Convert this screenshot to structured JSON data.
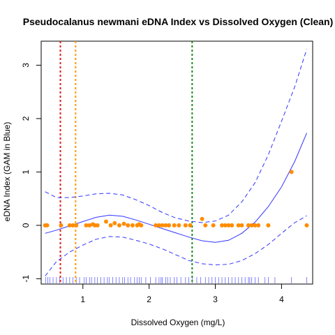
{
  "chart_data": {
    "type": "scatter",
    "title": "Pseudocalanus newmani eDNA Index vs Dissolved Oxygen (Clean)",
    "xlabel": "Dissolved Oxygen (mg/L)",
    "ylabel": "eDNA Index (GAM in Blue)",
    "xlim": [
      0.37,
      4.47
    ],
    "ylim": [
      -1.1,
      3.45
    ],
    "x_ticks": [
      1,
      2,
      3,
      4
    ],
    "y_ticks": [
      -1,
      0,
      1,
      2,
      3
    ],
    "grid": false,
    "colors": {
      "points": "#ff8c00",
      "gam": "#3333ff",
      "vline_red": "#e41a1c",
      "vline_orange": "#ff9900",
      "vline_green": "#1a8a1a",
      "rug": "#6666ff",
      "axis": "#000000"
    },
    "series": [
      {
        "kind": "points",
        "x": [
          0.43,
          0.46,
          0.67,
          0.8,
          0.85,
          0.9,
          1.05,
          1.1,
          1.15,
          1.18,
          1.22,
          1.35,
          1.42,
          1.48,
          1.55,
          1.62,
          1.68,
          1.75,
          1.82,
          1.85,
          1.88,
          2.1,
          2.15,
          2.2,
          2.25,
          2.3,
          2.38,
          2.45,
          2.55,
          2.62,
          2.8,
          2.85,
          2.97,
          3.1,
          3.15,
          3.2,
          3.25,
          3.35,
          3.4,
          3.5,
          3.55,
          3.6,
          3.65,
          3.8,
          4.15,
          4.38
        ],
        "y": [
          0.0,
          0.0,
          0.0,
          0.0,
          0.0,
          0.0,
          0.0,
          0.0,
          0.02,
          0.0,
          0.0,
          0.07,
          0.0,
          0.04,
          0.0,
          0.03,
          0.0,
          0.0,
          0.0,
          0.02,
          0.0,
          0.0,
          0.0,
          0.0,
          0.0,
          0.0,
          0.0,
          0.0,
          0.0,
          0.0,
          0.12,
          0.0,
          0.0,
          0.0,
          0.0,
          0.0,
          0.0,
          0.0,
          0.0,
          0.0,
          0.0,
          0.0,
          0.0,
          0.0,
          1.0,
          0.0
        ]
      },
      {
        "kind": "gam-fit",
        "x": [
          0.43,
          0.6,
          0.8,
          1.0,
          1.2,
          1.4,
          1.6,
          1.8,
          2.0,
          2.2,
          2.4,
          2.6,
          2.8,
          3.0,
          3.2,
          3.4,
          3.6,
          3.8,
          4.0,
          4.2,
          4.38
        ],
        "y": [
          -0.15,
          -0.09,
          -0.01,
          0.07,
          0.15,
          0.19,
          0.17,
          0.1,
          0.02,
          -0.06,
          -0.14,
          -0.22,
          -0.29,
          -0.32,
          -0.28,
          -0.15,
          0.06,
          0.35,
          0.72,
          1.2,
          1.73
        ]
      },
      {
        "kind": "gam-upper",
        "x": [
          0.43,
          0.6,
          0.8,
          1.0,
          1.2,
          1.4,
          1.6,
          1.8,
          2.0,
          2.2,
          2.4,
          2.6,
          2.8,
          3.0,
          3.2,
          3.4,
          3.6,
          3.8,
          4.0,
          4.2,
          4.38
        ],
        "y": [
          0.63,
          0.52,
          0.52,
          0.55,
          0.59,
          0.6,
          0.57,
          0.48,
          0.37,
          0.24,
          0.14,
          0.08,
          0.05,
          0.08,
          0.19,
          0.44,
          0.8,
          1.32,
          1.95,
          2.6,
          3.3
        ]
      },
      {
        "kind": "gam-lower",
        "x": [
          0.43,
          0.6,
          0.8,
          1.0,
          1.2,
          1.4,
          1.6,
          1.8,
          2.0,
          2.2,
          2.4,
          2.6,
          2.8,
          3.0,
          3.2,
          3.4,
          3.6,
          3.8,
          4.0,
          4.2,
          4.38
        ],
        "y": [
          -0.95,
          -0.68,
          -0.5,
          -0.37,
          -0.26,
          -0.21,
          -0.22,
          -0.28,
          -0.35,
          -0.44,
          -0.55,
          -0.66,
          -0.72,
          -0.74,
          -0.73,
          -0.66,
          -0.53,
          -0.36,
          -0.15,
          0.05,
          0.18
        ]
      }
    ],
    "vlines": [
      {
        "x": 0.66,
        "color": "vline_red"
      },
      {
        "x": 0.89,
        "color": "vline_orange"
      },
      {
        "x": 2.65,
        "color": "vline_green"
      }
    ],
    "rug_x": [
      0.44,
      0.47,
      0.5,
      0.55,
      0.6,
      0.65,
      0.7,
      0.75,
      0.8,
      0.85,
      0.9,
      0.95,
      1.02,
      1.05,
      1.1,
      1.13,
      1.18,
      1.22,
      1.27,
      1.32,
      1.37,
      1.4,
      1.45,
      1.5,
      1.55,
      1.6,
      1.63,
      1.68,
      1.72,
      1.78,
      1.82,
      1.85,
      1.88,
      1.95,
      2.02,
      2.1,
      2.15,
      2.18,
      2.2,
      2.25,
      2.28,
      2.32,
      2.38,
      2.42,
      2.48,
      2.55,
      2.6,
      2.65,
      2.72,
      2.78,
      2.85,
      2.9,
      2.95,
      3.0,
      3.05,
      3.1,
      3.15,
      3.2,
      3.25,
      3.3,
      3.35,
      3.4,
      3.45,
      3.5,
      3.52,
      3.55,
      3.6,
      3.65,
      3.75,
      3.8,
      3.9,
      4.15,
      4.38
    ]
  }
}
